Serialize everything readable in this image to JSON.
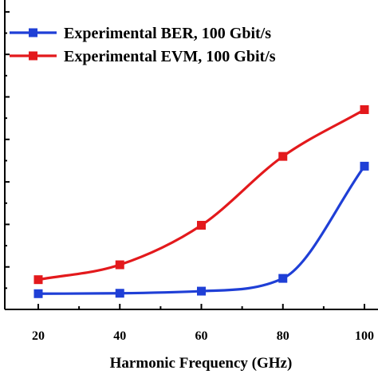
{
  "chart_data": {
    "type": "line",
    "xlabel": "Harmonic Frequency (GHz)",
    "x_ticks": [
      "20",
      "40",
      "60",
      "80",
      "100"
    ],
    "xlim": [
      20,
      100
    ],
    "grid": false,
    "legend_position": "top-left",
    "series": [
      {
        "name": "Experimental BER, 100 Gbit/s",
        "color": "#1f3fd6",
        "marker": "square",
        "x": [
          20,
          40,
          60,
          80,
          100
        ],
        "y": [
          0.37,
          0.38,
          0.43,
          0.73,
          3.37
        ]
      },
      {
        "name": "Experimental EVM, 100 Gbit/s",
        "color": "#e3191c",
        "marker": "square",
        "x": [
          20,
          40,
          60,
          80,
          100
        ],
        "y": [
          0.7,
          1.05,
          1.98,
          3.6,
          4.7
        ]
      }
    ]
  }
}
